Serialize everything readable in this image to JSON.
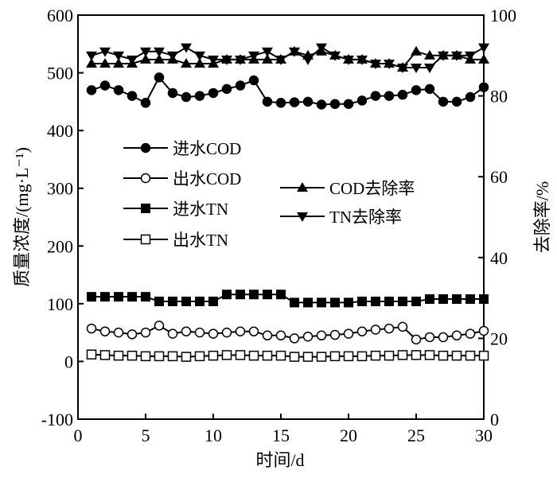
{
  "chart_data": {
    "type": "line",
    "x": [
      1,
      2,
      3,
      4,
      5,
      6,
      7,
      8,
      9,
      10,
      11,
      12,
      13,
      14,
      15,
      16,
      17,
      18,
      19,
      20,
      21,
      22,
      23,
      24,
      25,
      26,
      27,
      28,
      29,
      30
    ],
    "xlabel": "时间/d",
    "ylabel_left": "质量浓度/(mg·L⁻¹)",
    "ylabel_right": "去除率/%",
    "xlim": [
      0,
      30
    ],
    "ylim_left": [
      -100,
      600
    ],
    "ylim_right": [
      0,
      100
    ],
    "xticks": [
      0,
      5,
      10,
      15,
      20,
      25,
      30
    ],
    "yticks_left": [
      -100,
      0,
      100,
      200,
      300,
      400,
      500,
      600
    ],
    "yticks_right": [
      0,
      20,
      40,
      60,
      80,
      100
    ],
    "grid": false,
    "series": [
      {
        "name": "进水COD",
        "axis": "left",
        "marker": "filled-circle",
        "values": [
          470,
          478,
          470,
          460,
          448,
          492,
          465,
          458,
          460,
          465,
          472,
          478,
          487,
          450,
          448,
          449,
          450,
          445,
          446,
          446,
          452,
          460,
          460,
          462,
          470,
          472,
          450,
          450,
          458,
          475
        ]
      },
      {
        "name": "出水COD",
        "axis": "left",
        "marker": "open-circle",
        "values": [
          57,
          52,
          50,
          47,
          50,
          62,
          48,
          52,
          50,
          48,
          50,
          52,
          52,
          45,
          45,
          40,
          43,
          45,
          46,
          48,
          52,
          55,
          57,
          60,
          38,
          42,
          42,
          45,
          48,
          53
        ]
      },
      {
        "name": "进水TN",
        "axis": "left",
        "marker": "filled-square",
        "values": [
          112,
          112,
          112,
          112,
          112,
          104,
          104,
          104,
          104,
          104,
          116,
          116,
          116,
          116,
          116,
          102,
          102,
          102,
          102,
          102,
          104,
          104,
          104,
          104,
          104,
          108,
          108,
          108,
          108,
          108
        ]
      },
      {
        "name": "出水TN",
        "axis": "left",
        "marker": "open-square",
        "values": [
          12,
          11,
          10,
          10,
          9,
          9,
          9,
          8,
          9,
          10,
          11,
          11,
          10,
          10,
          10,
          8,
          8,
          8,
          9,
          9,
          9,
          10,
          10,
          11,
          11,
          11,
          10,
          10,
          10,
          10
        ]
      },
      {
        "name": "COD去除率",
        "axis": "right",
        "marker": "filled-triangle-up",
        "values": [
          88,
          88,
          88,
          88,
          89,
          89,
          89,
          88,
          88,
          88,
          89,
          89,
          89,
          89,
          89,
          91,
          90,
          91,
          90,
          89,
          89,
          88,
          88,
          87,
          91,
          90,
          90,
          90,
          89,
          89
        ]
      },
      {
        "name": "TN去除率",
        "axis": "right",
        "marker": "filled-triangle-down",
        "values": [
          90,
          91,
          90,
          89,
          91,
          91,
          90,
          92,
          90,
          89,
          89,
          89,
          90,
          91,
          89,
          91,
          89,
          92,
          90,
          89,
          89,
          88,
          88,
          87,
          87,
          87,
          90,
          90,
          90,
          92
        ]
      }
    ]
  }
}
